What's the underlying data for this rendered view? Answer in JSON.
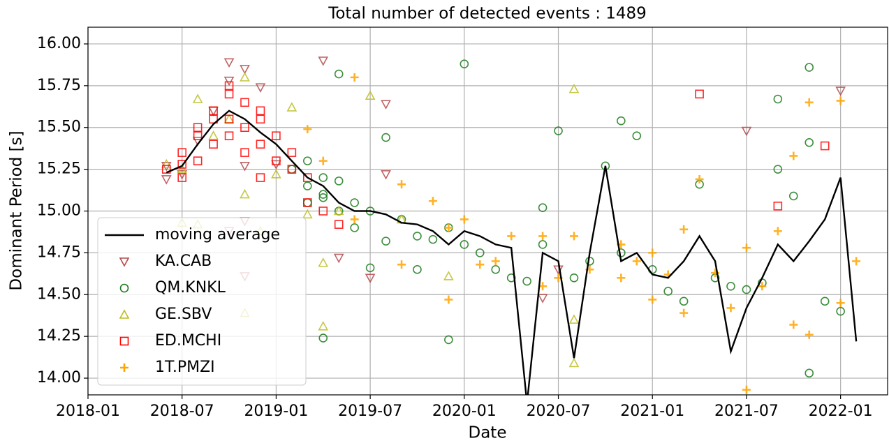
{
  "chart_data": {
    "type": "scatter",
    "title": "Total number of detected events : 1489",
    "xlabel": "Date",
    "ylabel": "Dominant Period [s]",
    "xlim": [
      "2018-01",
      "2022-04"
    ],
    "xticks": [
      "2018-01",
      "2018-07",
      "2019-01",
      "2019-07",
      "2020-01",
      "2020-07",
      "2021-01",
      "2021-07",
      "2022-01"
    ],
    "ylim": [
      13.9,
      16.1
    ],
    "yticks": [
      {
        "value": 14,
        "label": "14.00"
      },
      {
        "value": 14.25,
        "label": "14.25"
      },
      {
        "value": 14.5,
        "label": "14.50"
      },
      {
        "value": 14.75,
        "label": "14.75"
      },
      {
        "value": 15,
        "label": "15.00"
      },
      {
        "value": 15.25,
        "label": "15.25"
      },
      {
        "value": 15.5,
        "label": "15.50"
      },
      {
        "value": 15.75,
        "label": "15.75"
      },
      {
        "value": 16,
        "label": "16.00"
      }
    ],
    "grid": true,
    "legend": "lower left",
    "series": [
      {
        "name": "moving average",
        "type": "line",
        "color": "#000000",
        "x": [
          "2018-06",
          "2018-07",
          "2018-08",
          "2018-09",
          "2018-10",
          "2018-11",
          "2018-12",
          "2019-01",
          "2019-02",
          "2019-03",
          "2019-04",
          "2019-05",
          "2019-06",
          "2019-07",
          "2019-08",
          "2019-09",
          "2019-10",
          "2019-11",
          "2019-12",
          "2020-01",
          "2020-02",
          "2020-03",
          "2020-04",
          "2020-05",
          "2020-06",
          "2020-07",
          "2020-08",
          "2020-09",
          "2020-10",
          "2020-11",
          "2020-12",
          "2021-01",
          "2021-02",
          "2021-03",
          "2021-04",
          "2021-05",
          "2021-06",
          "2021-07",
          "2021-08",
          "2021-09",
          "2021-10",
          "2021-11",
          "2021-12",
          "2022-01",
          "2022-02"
        ],
        "values": [
          15.23,
          15.27,
          15.4,
          15.52,
          15.6,
          15.55,
          15.47,
          15.4,
          15.3,
          15.2,
          15.15,
          15.05,
          15.0,
          15.0,
          14.98,
          14.93,
          14.92,
          14.88,
          14.8,
          14.88,
          14.85,
          14.8,
          14.78,
          13.85,
          14.75,
          14.7,
          14.12,
          14.75,
          15.27,
          14.7,
          14.75,
          14.62,
          14.6,
          14.7,
          14.85,
          14.7,
          14.16,
          14.42,
          14.6,
          14.8,
          14.7,
          14.82,
          14.95,
          15.2,
          14.22
        ]
      },
      {
        "name": "KA.CAB",
        "marker": "triangle_down",
        "color": "#b5494a",
        "x": [
          "2018-06",
          "2018-06",
          "2018-07",
          "2018-08",
          "2018-09",
          "2018-10",
          "2018-10",
          "2018-11",
          "2018-11",
          "2018-12",
          "2018-11",
          "2018-10",
          "2018-11",
          "2019-01",
          "2019-04",
          "2019-05",
          "2019-08",
          "2019-08",
          "2019-07",
          "2020-06",
          "2020-07",
          "2021-07",
          "2022-01"
        ],
        "values": [
          15.19,
          15.27,
          15.22,
          15.42,
          15.6,
          15.89,
          15.78,
          15.85,
          15.27,
          15.74,
          14.94,
          14.88,
          14.61,
          15.28,
          15.9,
          14.72,
          15.64,
          15.22,
          14.6,
          14.48,
          14.65,
          15.48,
          15.72
        ]
      },
      {
        "name": "QM.KNKL",
        "marker": "circle",
        "color": "#1a7a1a",
        "x": [
          "2019-02",
          "2019-03",
          "2019-03",
          "2019-03",
          "2019-04",
          "2019-04",
          "2019-04",
          "2019-05",
          "2019-05",
          "2019-06",
          "2019-06",
          "2019-07",
          "2019-07",
          "2019-08",
          "2019-08",
          "2019-09",
          "2019-10",
          "2019-10",
          "2019-11",
          "2019-12",
          "2020-01",
          "2020-01",
          "2020-02",
          "2020-03",
          "2020-04",
          "2020-05",
          "2020-06",
          "2020-06",
          "2020-07",
          "2020-08",
          "2020-09",
          "2020-10",
          "2020-11",
          "2020-11",
          "2020-12",
          "2021-01",
          "2021-02",
          "2021-03",
          "2021-04",
          "2021-05",
          "2021-06",
          "2021-07",
          "2021-08",
          "2021-09",
          "2021-09",
          "2021-10",
          "2021-11",
          "2021-11",
          "2021-12",
          "2022-01",
          "2019-05",
          "2019-04",
          "2019-12",
          "2021-11"
        ],
        "values": [
          15.25,
          15.3,
          15.15,
          15.05,
          15.2,
          15.1,
          14.24,
          15.0,
          15.82,
          15.05,
          14.9,
          15.0,
          14.66,
          14.82,
          15.44,
          14.95,
          14.65,
          14.85,
          14.83,
          14.9,
          14.8,
          15.88,
          14.75,
          14.65,
          14.6,
          14.58,
          14.8,
          15.02,
          15.48,
          14.6,
          14.7,
          15.27,
          14.75,
          15.54,
          15.45,
          14.65,
          14.52,
          14.46,
          15.16,
          14.6,
          14.55,
          14.53,
          14.57,
          15.67,
          15.25,
          15.09,
          15.41,
          15.86,
          14.46,
          14.4,
          15.18,
          15.08,
          14.23,
          14.03
        ]
      },
      {
        "name": "GE.SBV",
        "marker": "triangle_up",
        "color": "#bcbd22",
        "x": [
          "2018-06",
          "2018-07",
          "2018-08",
          "2018-08",
          "2018-09",
          "2018-10",
          "2018-11",
          "2018-11",
          "2018-12",
          "2019-01",
          "2019-02",
          "2019-03",
          "2019-04",
          "2019-04",
          "2019-05",
          "2019-07",
          "2019-09",
          "2019-12",
          "2020-08",
          "2020-08",
          "2020-08",
          "2018-07",
          "2018-11"
        ],
        "values": [
          15.28,
          15.25,
          15.67,
          14.92,
          15.45,
          15.55,
          15.8,
          15.1,
          14.88,
          15.22,
          15.62,
          14.98,
          14.31,
          14.69,
          15.0,
          15.69,
          14.95,
          14.61,
          15.73,
          14.35,
          14.09,
          14.93,
          14.39
        ]
      },
      {
        "name": "ED.MCHI",
        "marker": "square",
        "color": "#ff0000",
        "x": [
          "2018-06",
          "2018-07",
          "2018-07",
          "2018-08",
          "2018-08",
          "2018-08",
          "2018-09",
          "2018-09",
          "2018-09",
          "2018-10",
          "2018-10",
          "2018-10",
          "2018-10",
          "2018-11",
          "2018-11",
          "2018-11",
          "2018-12",
          "2018-12",
          "2018-12",
          "2019-01",
          "2019-01",
          "2019-02",
          "2019-02",
          "2019-03",
          "2019-03",
          "2019-04",
          "2019-05",
          "2018-07",
          "2018-12",
          "2021-04",
          "2021-09",
          "2021-12"
        ],
        "values": [
          15.25,
          15.35,
          15.2,
          15.45,
          15.3,
          15.5,
          15.55,
          15.4,
          15.6,
          15.7,
          15.55,
          15.75,
          15.45,
          15.65,
          15.5,
          15.35,
          15.6,
          15.4,
          15.2,
          15.45,
          15.3,
          15.35,
          15.25,
          15.2,
          15.05,
          15.0,
          14.92,
          15.28,
          15.55,
          15.7,
          15.03,
          15.39
        ]
      },
      {
        "name": "1T.PMZI",
        "marker": "plus",
        "color": "#ffa500",
        "x": [
          "2019-03",
          "2019-04",
          "2019-06",
          "2019-09",
          "2019-09",
          "2019-11",
          "2019-12",
          "2019-12",
          "2020-01",
          "2020-02",
          "2020-03",
          "2020-04",
          "2020-06",
          "2020-06",
          "2020-07",
          "2020-08",
          "2020-09",
          "2020-11",
          "2020-11",
          "2020-12",
          "2021-01",
          "2021-01",
          "2021-02",
          "2021-03",
          "2021-03",
          "2021-04",
          "2021-05",
          "2021-06",
          "2021-07",
          "2021-07",
          "2021-08",
          "2021-09",
          "2021-10",
          "2021-10",
          "2021-11",
          "2021-11",
          "2022-01",
          "2022-01",
          "2022-02",
          "2019-06"
        ],
        "values": [
          15.49,
          15.3,
          14.95,
          15.16,
          14.68,
          15.06,
          14.47,
          14.9,
          14.95,
          14.68,
          14.7,
          14.85,
          14.85,
          14.55,
          14.6,
          14.85,
          14.65,
          14.8,
          14.6,
          14.7,
          14.75,
          14.47,
          14.62,
          14.39,
          14.89,
          15.19,
          14.63,
          14.42,
          13.93,
          14.78,
          14.55,
          14.88,
          15.33,
          14.32,
          15.65,
          14.26,
          15.66,
          14.45,
          14.7,
          15.8
        ]
      }
    ]
  }
}
